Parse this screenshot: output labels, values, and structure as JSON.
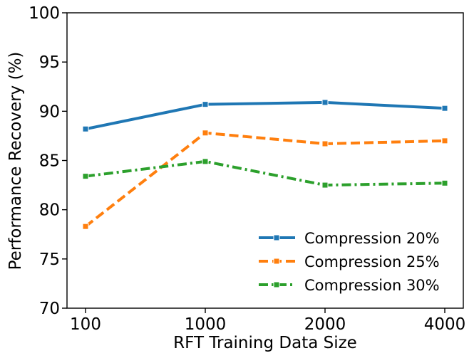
{
  "chart_data": {
    "type": "line",
    "title": "",
    "xlabel": "RFT Training Data Size",
    "ylabel": "Performance Recovery (%)",
    "categories": [
      "100",
      "1000",
      "2000",
      "4000"
    ],
    "ylim": [
      70,
      100
    ],
    "yticks": [
      "70",
      "75",
      "80",
      "85",
      "90",
      "95",
      "100"
    ],
    "grid": false,
    "legend_position": "lower-right",
    "series": [
      {
        "name": "Compression 20%",
        "values": [
          88.2,
          90.7,
          90.9,
          90.3
        ],
        "color": "#1f77b4",
        "dash": "solid"
      },
      {
        "name": "Compression 25%",
        "values": [
          78.3,
          87.8,
          86.7,
          87.0
        ],
        "color": "#ff7f0e",
        "dash": "dashed"
      },
      {
        "name": "Compression 30%",
        "values": [
          83.4,
          84.9,
          82.5,
          82.7
        ],
        "color": "#2ca02c",
        "dash": "dashdot"
      }
    ]
  }
}
